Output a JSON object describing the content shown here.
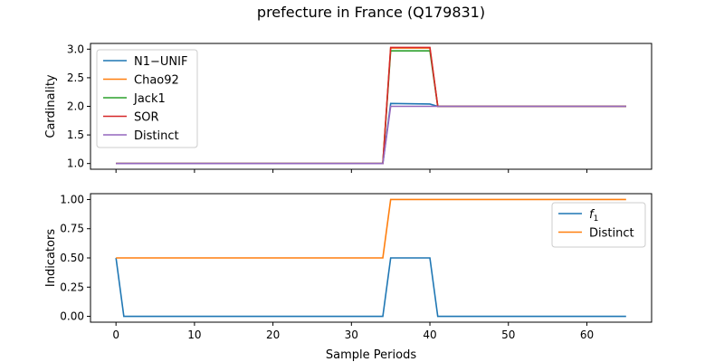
{
  "figure": {
    "title": "prefecture in France (Q179831)"
  },
  "chart_data": [
    {
      "type": "line",
      "panel": "top",
      "ylabel": "Cardinality",
      "xlabel": "",
      "xlim": [
        -3.25,
        68.25
      ],
      "ylim": [
        0.9,
        3.1
      ],
      "yticks": [
        1.0,
        1.5,
        2.0,
        2.5,
        3.0
      ],
      "ytick_labels": [
        "1.0",
        "1.5",
        "2.0",
        "2.5",
        "3.0"
      ],
      "xticks": [
        0,
        10,
        20,
        30,
        40,
        50,
        60
      ],
      "show_xtick_labels": false,
      "grid": false,
      "legend_position": "upper-left",
      "series": [
        {
          "name": "N1−UNIF",
          "color": "#1f77b4",
          "points": [
            [
              0,
              1.0
            ],
            [
              34,
              1.0
            ],
            [
              35,
              2.05
            ],
            [
              40,
              2.04
            ],
            [
              41,
              2.0
            ],
            [
              65,
              2.0
            ]
          ]
        },
        {
          "name": "Chao92",
          "color": "#ff7f0e",
          "points": [
            [
              0,
              1.0
            ],
            [
              34,
              1.0
            ],
            [
              35,
              3.02
            ],
            [
              40,
              3.02
            ],
            [
              41,
              2.0
            ],
            [
              65,
              2.0
            ]
          ]
        },
        {
          "name": "Jack1",
          "color": "#2ca02c",
          "points": [
            [
              0,
              1.0
            ],
            [
              34,
              1.0
            ],
            [
              35,
              2.97
            ],
            [
              40,
              2.97
            ],
            [
              41,
              2.0
            ],
            [
              65,
              2.0
            ]
          ]
        },
        {
          "name": "SOR",
          "color": "#d62728",
          "points": [
            [
              0,
              1.0
            ],
            [
              34,
              1.0
            ],
            [
              35,
              3.03
            ],
            [
              40,
              3.03
            ],
            [
              41,
              2.0
            ],
            [
              65,
              2.0
            ]
          ]
        },
        {
          "name": "Distinct",
          "color": "#9467bd",
          "points": [
            [
              0,
              1.0
            ],
            [
              34,
              1.0
            ],
            [
              35,
              2.0
            ],
            [
              40,
              2.0
            ],
            [
              41,
              2.0
            ],
            [
              65,
              2.0
            ]
          ]
        }
      ]
    },
    {
      "type": "line",
      "panel": "bottom",
      "ylabel": "Indicators",
      "xlabel": "Sample Periods",
      "xlim": [
        -3.25,
        68.25
      ],
      "ylim": [
        -0.05,
        1.05
      ],
      "yticks": [
        0.0,
        0.25,
        0.5,
        0.75,
        1.0
      ],
      "ytick_labels": [
        "0.00",
        "0.25",
        "0.50",
        "0.75",
        "1.00"
      ],
      "xticks": [
        0,
        10,
        20,
        30,
        40,
        50,
        60
      ],
      "xtick_labels": [
        "0",
        "10",
        "20",
        "30",
        "40",
        "50",
        "60"
      ],
      "show_xtick_labels": true,
      "grid": false,
      "legend_position": "upper-right",
      "series": [
        {
          "name": "f1",
          "color": "#1f77b4",
          "points": [
            [
              0,
              0.5
            ],
            [
              1,
              0.0
            ],
            [
              34,
              0.0
            ],
            [
              35,
              0.5
            ],
            [
              40,
              0.5
            ],
            [
              41,
              0.0
            ],
            [
              65,
              0.0
            ]
          ]
        },
        {
          "name": "Distinct",
          "color": "#ff7f0e",
          "points": [
            [
              0,
              0.5
            ],
            [
              34,
              0.5
            ],
            [
              35,
              1.0
            ],
            [
              65,
              1.0
            ]
          ]
        }
      ]
    }
  ]
}
